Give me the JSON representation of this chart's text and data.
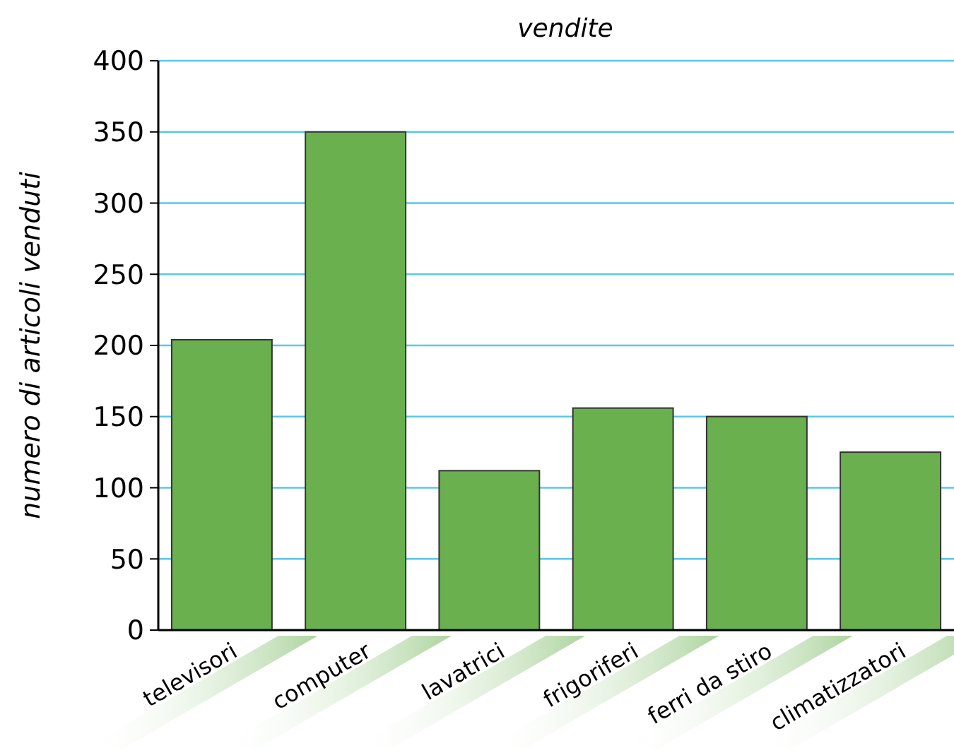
{
  "chart_data": {
    "type": "bar",
    "title": "vendite",
    "ylabel": "numero di articoli venduti",
    "categories": [
      "televisori",
      "computer",
      "lavatrici",
      "frigoriferi",
      "ferri da stiro",
      "climatizzatori"
    ],
    "values": [
      204,
      350,
      112,
      156,
      150,
      125
    ],
    "color": "#6ab04f",
    "ylim": [
      0,
      400
    ],
    "yticks": [
      0,
      50,
      100,
      150,
      200,
      250,
      300,
      350,
      400
    ],
    "grid": "y"
  }
}
